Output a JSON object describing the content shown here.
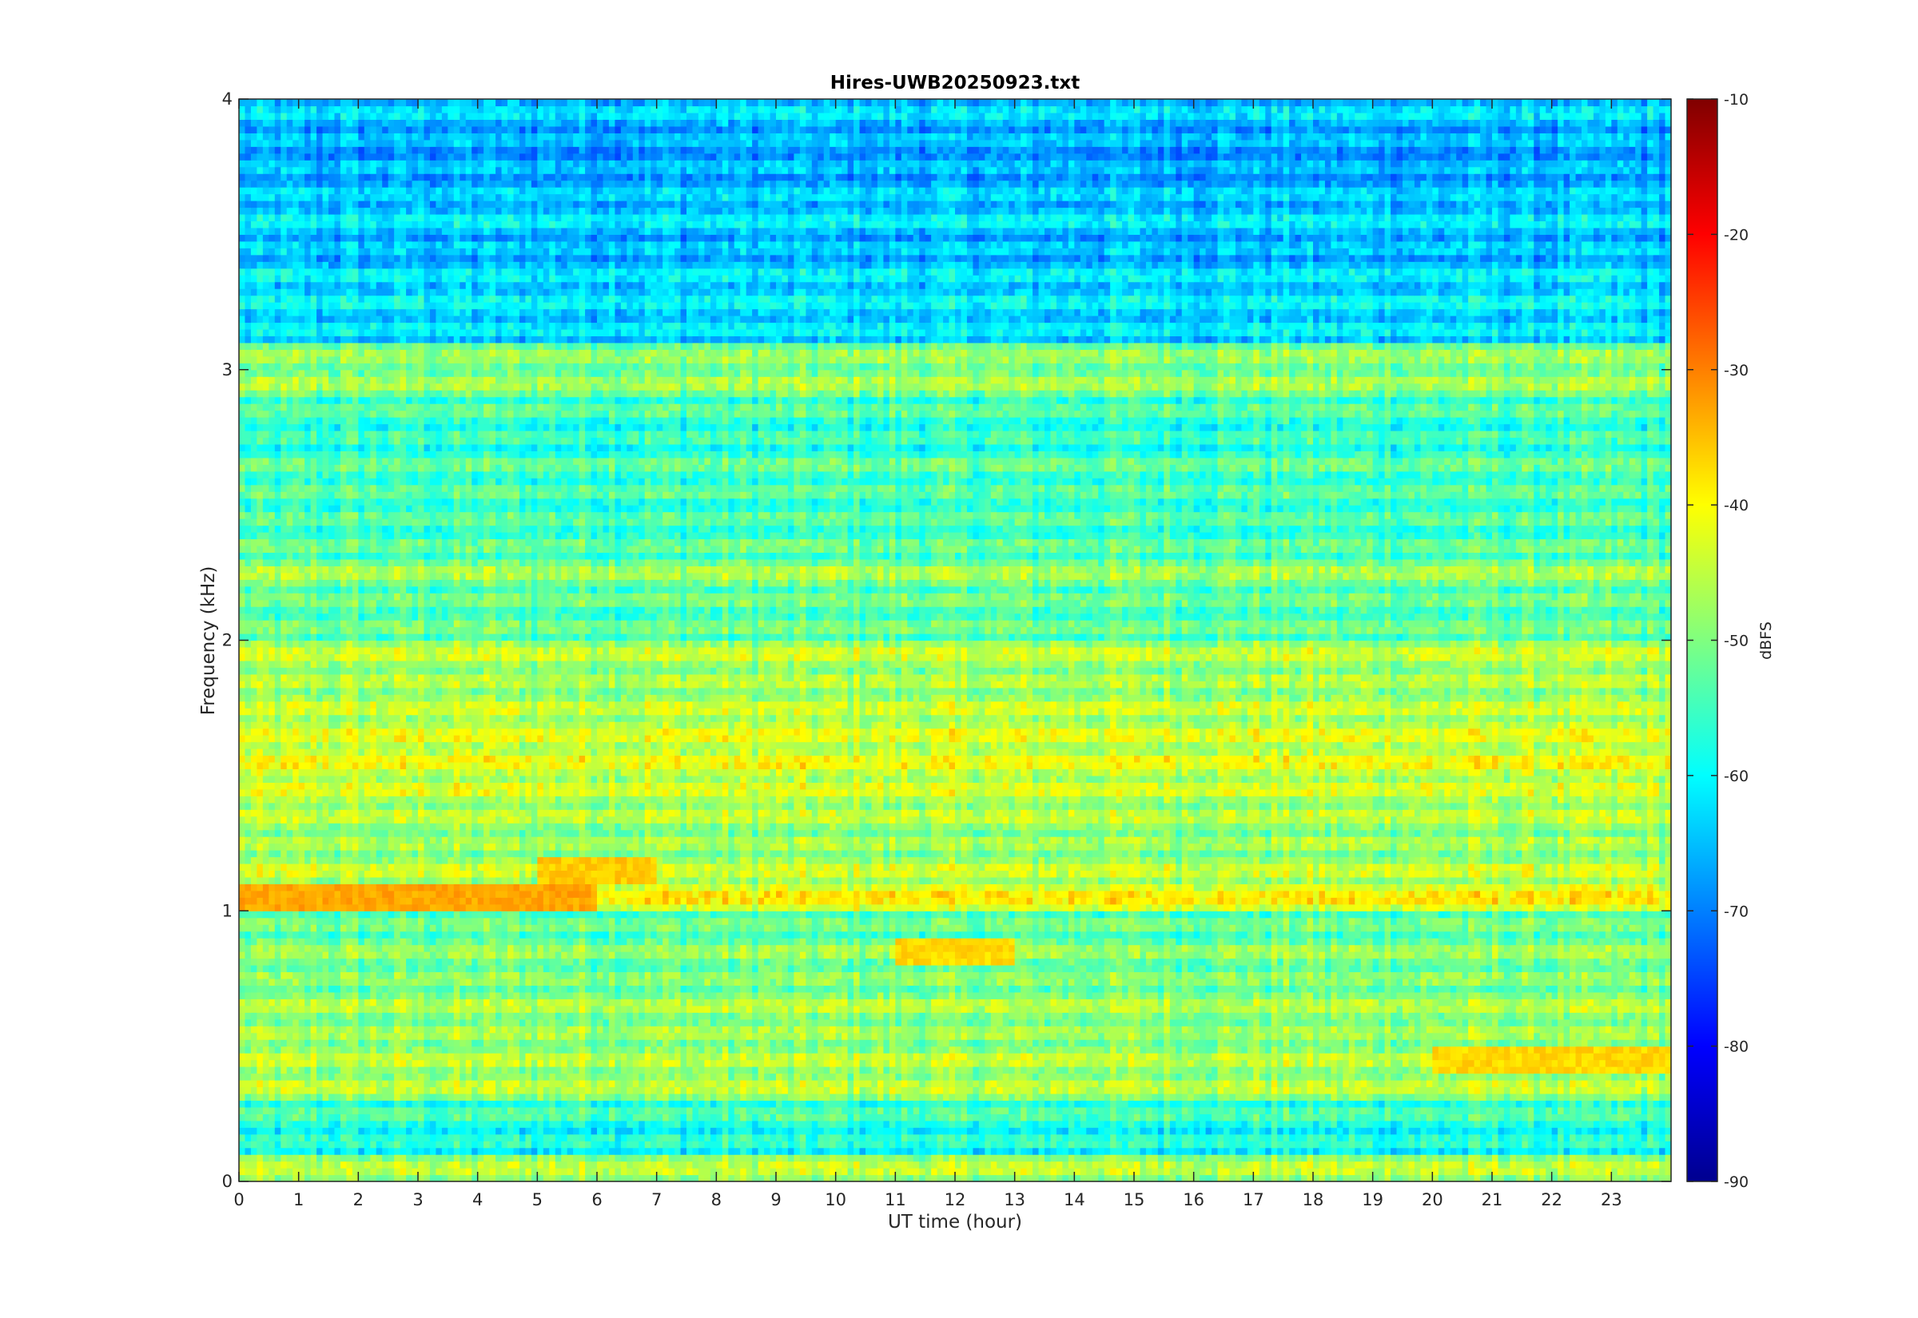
{
  "chart_data": {
    "type": "heatmap",
    "title": "Hires-UWB20250923.txt",
    "xlabel": "UT time (hour)",
    "ylabel": "Frequency (kHz)",
    "xlim": [
      0,
      24
    ],
    "ylim": [
      0,
      4
    ],
    "x_ticks": [
      "0",
      "1",
      "2",
      "3",
      "4",
      "5",
      "6",
      "7",
      "8",
      "9",
      "10",
      "11",
      "12",
      "13",
      "14",
      "15",
      "16",
      "17",
      "18",
      "19",
      "20",
      "21",
      "22",
      "23"
    ],
    "y_ticks": [
      "0",
      "1",
      "2",
      "3",
      "4"
    ],
    "colormap": "jet",
    "colorbar": {
      "label": "dBFS",
      "range": [
        -90,
        -10
      ],
      "ticks": [
        "-90",
        "-80",
        "-70",
        "-60",
        "-50",
        "-40",
        "-30",
        "-20",
        "-10"
      ]
    },
    "band_centers_khz": [
      0.05,
      0.15,
      0.25,
      0.35,
      0.45,
      0.55,
      0.65,
      0.75,
      0.85,
      0.95,
      1.05,
      1.15,
      1.25,
      1.35,
      1.45,
      1.55,
      1.65,
      1.75,
      1.85,
      1.95,
      2.05,
      2.15,
      2.25,
      2.35,
      2.45,
      2.55,
      2.65,
      2.75,
      2.85,
      2.95,
      3.05,
      3.15,
      3.25,
      3.35,
      3.45,
      3.55,
      3.65,
      3.75,
      3.85,
      3.95
    ],
    "band_levels_dbfs": [
      -44,
      -56,
      -53,
      -44,
      -44,
      -46,
      -45,
      -48,
      -47,
      -50,
      -38,
      -43,
      -46,
      -44,
      -42,
      -40,
      -41,
      -43,
      -45,
      -43,
      -50,
      -50,
      -46,
      -51,
      -52,
      -52,
      -51,
      -54,
      -52,
      -46,
      -47,
      -60,
      -59,
      -60,
      -63,
      -60,
      -62,
      -64,
      -64,
      -61
    ],
    "notable_features": [
      {
        "text": "strong band near 1.05 kHz, hours 0-6",
        "freq_khz": 1.05,
        "hours": [
          0,
          6
        ],
        "level_dbfs": -33
      },
      {
        "text": "band near 1.15 kHz, hours 5-7",
        "freq_khz": 1.15,
        "hours": [
          5,
          7
        ],
        "level_dbfs": -36
      },
      {
        "text": "band near 0.85 kHz, hours 11-13",
        "freq_khz": 0.85,
        "hours": [
          11,
          13
        ],
        "level_dbfs": -37
      },
      {
        "text": "band near 0.45 kHz, hours 20-24",
        "freq_khz": 0.45,
        "hours": [
          20,
          24
        ],
        "level_dbfs": -37
      },
      {
        "text": "quiet band near 0.10 kHz",
        "freq_khz": 0.1,
        "hours": [
          0,
          24
        ],
        "level_dbfs": -70
      }
    ]
  }
}
